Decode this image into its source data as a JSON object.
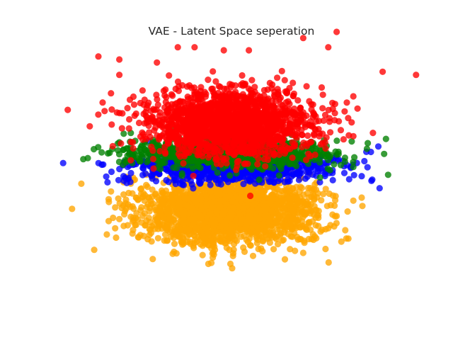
{
  "chart_data": {
    "type": "scatter",
    "title": "VAE - Latent Space seperation",
    "xlabel": "",
    "ylabel": "",
    "axes_visible": false,
    "grid": false,
    "legend": "none",
    "xlim": [
      -4.2,
      4.2
    ],
    "ylim": [
      -4.2,
      4.2
    ],
    "series": [
      {
        "color": "#ffa500",
        "count": 2200,
        "distribution": {
          "mean_x": -0.1,
          "mean_y": -1.3,
          "sd_x": 1.05,
          "sd_y": 0.55
        },
        "points": [
          [
            -3.3,
            -2.6
          ],
          [
            -3.0,
            -2.1
          ],
          [
            -2.8,
            -1.9
          ],
          [
            -2.7,
            -1.6
          ],
          [
            -2.5,
            -1.8
          ],
          [
            -2.3,
            -0.9
          ],
          [
            -1.9,
            -2.9
          ],
          [
            -1.6,
            -2.1
          ],
          [
            -1.0,
            -2.4
          ],
          [
            0.0,
            -3.2
          ],
          [
            0.5,
            -2.8
          ],
          [
            1.7,
            -2.7
          ],
          [
            1.2,
            -2.3
          ],
          [
            2.0,
            -1.8
          ],
          [
            2.3,
            -1.9
          ],
          [
            2.5,
            -1.5
          ],
          [
            2.9,
            -1.0
          ],
          [
            3.1,
            -0.9
          ],
          [
            -2.9,
            -0.7
          ],
          [
            -2.6,
            -0.4
          ]
        ]
      },
      {
        "color": "#0000ff",
        "count": 1000,
        "distribution": {
          "mean_x": 0.0,
          "mean_y": 0.12,
          "sd_x": 1.15,
          "sd_y": 0.24
        },
        "points": [
          [
            -2.2,
            0.3
          ],
          [
            -2.5,
            0.1
          ],
          [
            -2.6,
            -0.2
          ],
          [
            2.4,
            -0.1
          ],
          [
            2.8,
            -0.3
          ],
          [
            3.1,
            -0.2
          ],
          [
            2.1,
            -0.4
          ],
          [
            -1.8,
            0.4
          ],
          [
            1.9,
            0.1
          ],
          [
            0.9,
            0.2
          ]
        ]
      },
      {
        "color": "#008000",
        "count": 1000,
        "distribution": {
          "mean_x": 0.0,
          "mean_y": 0.55,
          "sd_x": 1.15,
          "sd_y": 0.24
        },
        "points": [
          [
            -2.7,
            0.9
          ],
          [
            -2.5,
            0.7
          ],
          [
            -2.4,
            0.6
          ],
          [
            2.7,
            0.4
          ],
          [
            2.9,
            0.1
          ],
          [
            2.5,
            0.5
          ],
          [
            2.2,
            0.7
          ],
          [
            -1.9,
            0.9
          ],
          [
            1.5,
            0.6
          ],
          [
            -0.5,
            0.8
          ]
        ]
      },
      {
        "color": "#ff0000",
        "count": 1800,
        "distribution": {
          "mean_x": -0.05,
          "mean_y": 1.55,
          "sd_x": 1.0,
          "sd_y": 0.55
        },
        "points": [
          [
            -3.2,
            3.7
          ],
          [
            -2.7,
            3.6
          ],
          [
            -2.7,
            3.1
          ],
          [
            -2.9,
            2.5
          ],
          [
            -3.1,
            2.2
          ],
          [
            -1.8,
            3.5
          ],
          [
            -1.3,
            4.0
          ],
          [
            -0.9,
            4.0
          ],
          [
            -0.2,
            3.9
          ],
          [
            0.4,
            3.9
          ],
          [
            1.7,
            4.3
          ],
          [
            2.5,
            4.5
          ],
          [
            2.3,
            4.0
          ],
          [
            3.6,
            3.2
          ],
          [
            4.4,
            3.1
          ],
          [
            3.0,
            2.0
          ],
          [
            2.9,
            2.4
          ],
          [
            2.6,
            1.3
          ],
          [
            2.9,
            1.1
          ],
          [
            -1.6,
            1.8
          ]
        ]
      }
    ]
  }
}
